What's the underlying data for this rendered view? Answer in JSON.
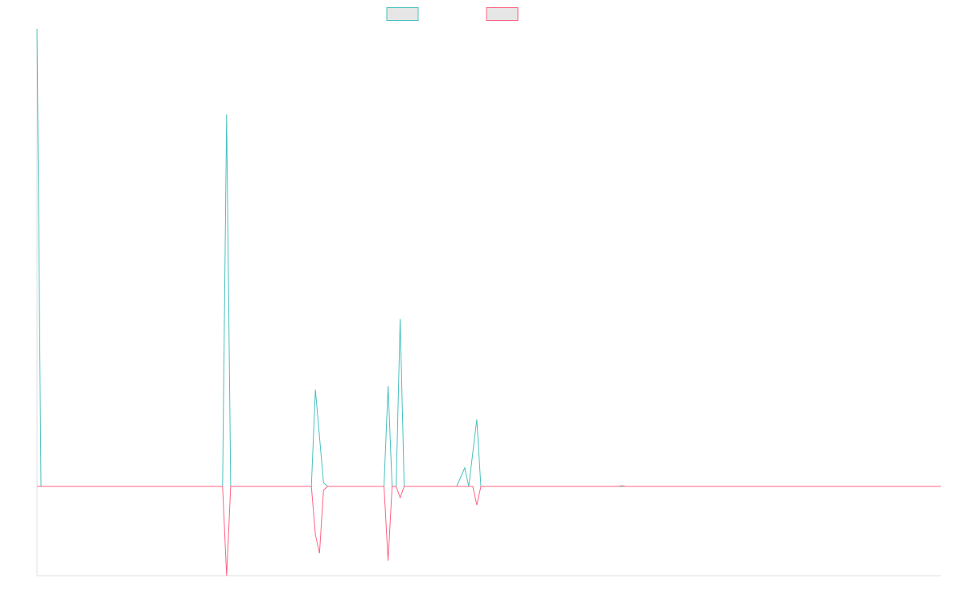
{
  "chart_data": {
    "type": "line",
    "title": "",
    "xlabel": "",
    "ylabel": "",
    "xlim": [
      0,
      224
    ],
    "ylim": [
      -0.24,
      1.23
    ],
    "grid": false,
    "legend": {
      "placement": "top-center",
      "entries": [
        {
          "name": "",
          "color": "#4bc0c0"
        },
        {
          "name": "",
          "color": "#ff6384"
        }
      ]
    },
    "series": [
      {
        "name": "",
        "color": "#4bc0c0",
        "points": [
          [
            0,
            1.23
          ],
          [
            1,
            0
          ],
          [
            46,
            0
          ],
          [
            47,
            1.0
          ],
          [
            48,
            0
          ],
          [
            68,
            0
          ],
          [
            69,
            0.26
          ],
          [
            71,
            0.01
          ],
          [
            72,
            0
          ],
          [
            86,
            0
          ],
          [
            87,
            0.27
          ],
          [
            88,
            0
          ],
          [
            89,
            0
          ],
          [
            90,
            0.45
          ],
          [
            91,
            0
          ],
          [
            104,
            0
          ],
          [
            106,
            0.05
          ],
          [
            107,
            0
          ],
          [
            109,
            0.18
          ],
          [
            110,
            0
          ],
          [
            224,
            0
          ]
        ]
      },
      {
        "name": "",
        "color": "#ff6384",
        "points": [
          [
            0,
            0
          ],
          [
            46,
            0
          ],
          [
            47,
            -0.24
          ],
          [
            48,
            0
          ],
          [
            68,
            0
          ],
          [
            69,
            -0.13
          ],
          [
            70,
            -0.18
          ],
          [
            71,
            -0.01
          ],
          [
            72,
            0
          ],
          [
            86,
            0
          ],
          [
            87,
            -0.2
          ],
          [
            88,
            0
          ],
          [
            89,
            0
          ],
          [
            90,
            -0.03
          ],
          [
            91,
            0
          ],
          [
            104,
            0
          ],
          [
            105,
            0
          ],
          [
            108,
            0
          ],
          [
            109,
            -0.05
          ],
          [
            110,
            0
          ],
          [
            144,
            0
          ],
          [
            145,
            0.002
          ],
          [
            146,
            0
          ],
          [
            224,
            0
          ]
        ]
      }
    ]
  }
}
